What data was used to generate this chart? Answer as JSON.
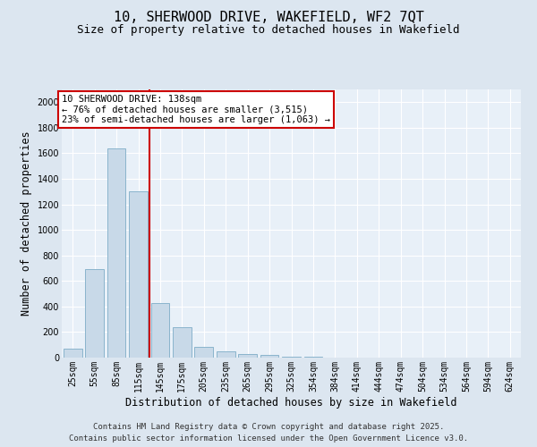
{
  "title_line1": "10, SHERWOOD DRIVE, WAKEFIELD, WF2 7QT",
  "title_line2": "Size of property relative to detached houses in Wakefield",
  "xlabel": "Distribution of detached houses by size in Wakefield",
  "ylabel": "Number of detached properties",
  "categories": [
    "25sqm",
    "55sqm",
    "85sqm",
    "115sqm",
    "145sqm",
    "175sqm",
    "205sqm",
    "235sqm",
    "265sqm",
    "295sqm",
    "325sqm",
    "354sqm",
    "384sqm",
    "414sqm",
    "444sqm",
    "474sqm",
    "504sqm",
    "534sqm",
    "564sqm",
    "594sqm",
    "624sqm"
  ],
  "values": [
    70,
    690,
    1640,
    1300,
    430,
    240,
    85,
    50,
    30,
    20,
    10,
    5,
    3,
    2,
    2,
    1,
    1,
    0,
    0,
    0,
    2
  ],
  "bar_color": "#c8d9e8",
  "bar_edge_color": "#8ab4cc",
  "vline_color": "#cc0000",
  "annotation_text": "10 SHERWOOD DRIVE: 138sqm\n← 76% of detached houses are smaller (3,515)\n23% of semi-detached houses are larger (1,063) →",
  "annotation_box_color": "#cc0000",
  "ylim": [
    0,
    2100
  ],
  "yticks": [
    0,
    200,
    400,
    600,
    800,
    1000,
    1200,
    1400,
    1600,
    1800,
    2000
  ],
  "bg_color": "#dce6f0",
  "plot_bg_color": "#e8f0f8",
  "grid_color": "#ffffff",
  "footer_line1": "Contains HM Land Registry data © Crown copyright and database right 2025.",
  "footer_line2": "Contains public sector information licensed under the Open Government Licence v3.0.",
  "title_fontsize": 11,
  "subtitle_fontsize": 9,
  "tick_fontsize": 7,
  "label_fontsize": 8.5,
  "footer_fontsize": 6.5,
  "annotation_fontsize": 7.5
}
